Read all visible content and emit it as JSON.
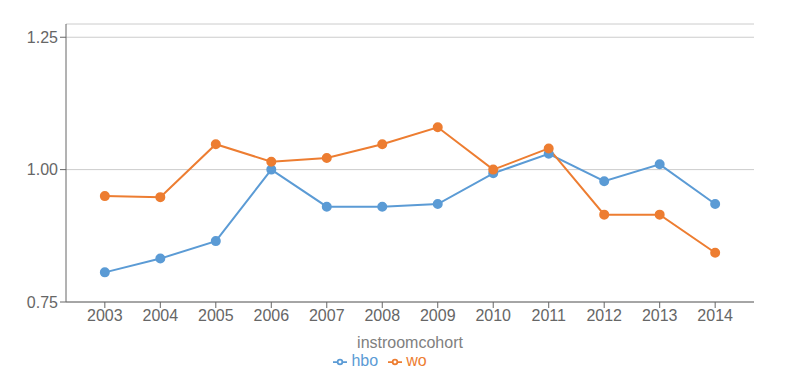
{
  "chart_data": {
    "type": "line",
    "x": [
      2003,
      2004,
      2005,
      2006,
      2007,
      2008,
      2009,
      2010,
      2011,
      2012,
      2013,
      2014
    ],
    "series": [
      {
        "name": "hbo",
        "color": "#5B9BD5",
        "marker": "circle",
        "values": [
          0.806,
          0.832,
          0.865,
          1.0,
          0.93,
          0.93,
          0.935,
          0.993,
          1.03,
          0.978,
          1.01,
          0.935
        ]
      },
      {
        "name": "wo",
        "color": "#ED7D31",
        "marker": "circle",
        "values": [
          0.95,
          0.948,
          1.048,
          1.015,
          1.022,
          1.048,
          1.08,
          1.0,
          1.04,
          0.915,
          0.915,
          0.843
        ]
      }
    ],
    "xlabel": "instroomcohort",
    "xlim": [
      2002.3,
      2014.7
    ],
    "xticks": [
      2003,
      2004,
      2005,
      2006,
      2007,
      2008,
      2009,
      2010,
      2011,
      2012,
      2013,
      2014
    ],
    "ylim": [
      0.75,
      1.275
    ],
    "yticks": [
      0.75,
      {
        "value": 1.0,
        "label": "1.00"
      },
      1.25
    ],
    "grid": true,
    "legend": "bottom"
  }
}
